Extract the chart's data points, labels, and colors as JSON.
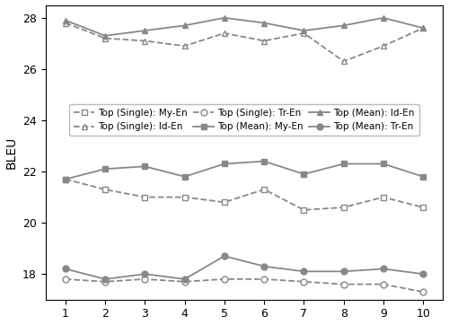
{
  "x": [
    1,
    2,
    3,
    4,
    5,
    6,
    7,
    8,
    9,
    10
  ],
  "series": {
    "top_single_my_en": [
      21.7,
      21.3,
      21.0,
      21.0,
      20.8,
      21.3,
      20.5,
      20.6,
      21.0,
      20.6
    ],
    "top_mean_my_en": [
      21.7,
      22.1,
      22.2,
      21.8,
      22.3,
      22.4,
      21.9,
      22.3,
      22.3,
      21.8
    ],
    "top_single_id_en": [
      27.8,
      27.2,
      27.1,
      26.9,
      27.4,
      27.1,
      27.4,
      26.3,
      26.9,
      27.6
    ],
    "top_mean_id_en": [
      27.9,
      27.3,
      27.5,
      27.7,
      28.0,
      27.8,
      27.5,
      27.7,
      28.0,
      27.6
    ],
    "top_single_tr_en": [
      17.8,
      17.7,
      17.8,
      17.7,
      17.8,
      17.8,
      17.7,
      17.6,
      17.6,
      17.3
    ],
    "top_mean_tr_en": [
      18.2,
      17.8,
      18.0,
      17.8,
      18.7,
      18.3,
      18.1,
      18.1,
      18.2,
      18.0
    ]
  },
  "line_styles": {
    "top_single_my_en": "--",
    "top_mean_my_en": "-",
    "top_single_id_en": "--",
    "top_mean_id_en": "-",
    "top_single_tr_en": "--",
    "top_mean_tr_en": "-"
  },
  "markers": {
    "top_single_my_en": "s",
    "top_mean_my_en": "s",
    "top_single_id_en": "^",
    "top_mean_id_en": "^",
    "top_single_tr_en": "o",
    "top_mean_tr_en": "o"
  },
  "color": "#888888",
  "legend_labels": {
    "top_single_my_en": "Top (Single): My-En",
    "top_mean_my_en": "Top (Mean): My-En",
    "top_single_id_en": "Top (Single): Id-En",
    "top_mean_id_en": "Top (Mean): Id-En",
    "top_single_tr_en": "Top (Single): Tr-En",
    "top_mean_tr_en": "Top (Mean): Tr-En"
  },
  "ylabel": "BLEU",
  "xlim": [
    0.5,
    10.5
  ],
  "ylim": [
    17.0,
    28.5
  ],
  "yticks": [
    18,
    20,
    22,
    24,
    26,
    28
  ],
  "xticks": [
    1,
    2,
    3,
    4,
    5,
    6,
    7,
    8,
    9,
    10
  ],
  "marker_size": 5,
  "linewidth": 1.3,
  "figsize": [
    5.0,
    3.62
  ],
  "dpi": 100
}
